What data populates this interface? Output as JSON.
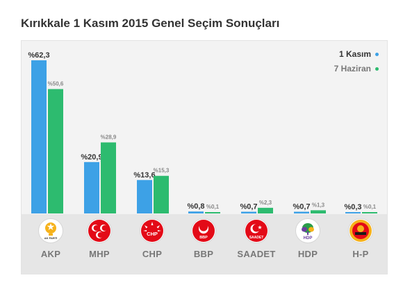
{
  "title": "Kırıkkale 1 Kasım 2015 Genel Seçim Sonuçları",
  "legend": {
    "current": "1 Kasım",
    "previous": "7 Haziran"
  },
  "colors": {
    "current": "#3da1e6",
    "previous": "#2dbb6f",
    "panel_bg": "#f3f3f3",
    "strip_bg": "#e6e6e6"
  },
  "chart_data": {
    "type": "bar",
    "title": "Kırıkkale 1 Kasım 2015 Genel Seçim Sonuçları",
    "categories": [
      "AKP",
      "MHP",
      "CHP",
      "BBP",
      "SAADET",
      "HDP",
      "H-P"
    ],
    "series": [
      {
        "name": "1 Kasım",
        "values": [
          62.3,
          20.9,
          13.6,
          0.8,
          0.7,
          0.7,
          0.3
        ],
        "labels": [
          "%62,3",
          "%20,9",
          "%13,6",
          "%0,8",
          "%0,7",
          "%0,7",
          "%0,3"
        ]
      },
      {
        "name": "7 Haziran",
        "values": [
          50.6,
          28.9,
          15.3,
          0.1,
          2.3,
          1.3,
          0.1
        ],
        "labels": [
          "%50,6",
          "%28,9",
          "%15,3",
          "%0,1",
          "%2,3",
          "%1,3",
          "%0,1"
        ]
      }
    ],
    "ylim": [
      0,
      62.3
    ],
    "legend_position": "top-right",
    "grid": false
  },
  "parties": [
    {
      "name": "AKP",
      "logo_text": "AK PARTİ",
      "icon": "akp-bulb-logo-icon"
    },
    {
      "name": "MHP",
      "icon": "mhp-crescents-logo-icon"
    },
    {
      "name": "CHP",
      "logo_text": "CHP",
      "icon": "chp-arrows-logo-icon"
    },
    {
      "name": "BBP",
      "logo_text": "BBP",
      "icon": "bbp-crescent-logo-icon"
    },
    {
      "name": "SAADET",
      "logo_text": "SAADET",
      "icon": "saadet-crescent-star-logo-icon"
    },
    {
      "name": "HDP",
      "logo_text": "HDP",
      "icon": "hdp-tree-logo-icon"
    },
    {
      "name": "H-P",
      "icon": "hp-sun-logo-icon"
    }
  ]
}
